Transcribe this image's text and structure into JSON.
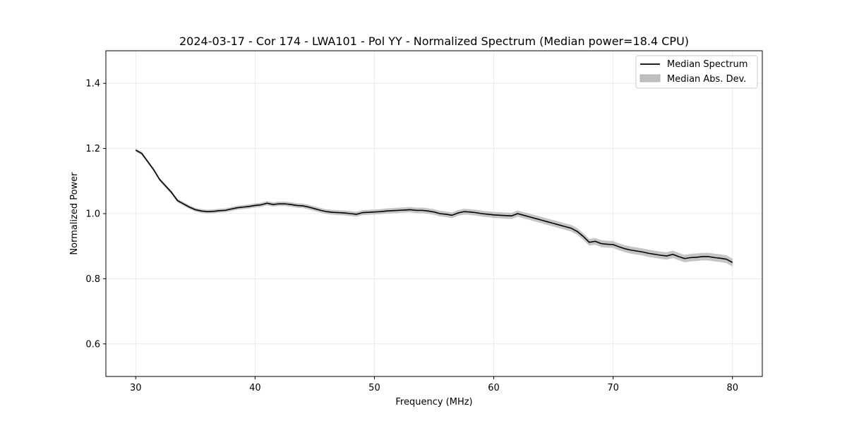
{
  "chart_data": {
    "type": "line",
    "title": "2024-03-17 - Cor 174 - LWA101 - Pol YY - Normalized Spectrum (Median power=18.4 CPU)",
    "xlabel": "Frequency (MHz)",
    "ylabel": "Normalized Power",
    "xlim": [
      27.5,
      82.5
    ],
    "ylim": [
      0.5,
      1.5
    ],
    "xticks": [
      30,
      40,
      50,
      60,
      70,
      80
    ],
    "xtick_labels": [
      "30",
      "40",
      "50",
      "60",
      "70",
      "80"
    ],
    "yticks": [
      0.6,
      0.8,
      1.0,
      1.2,
      1.4
    ],
    "ytick_labels": [
      "0.6",
      "0.8",
      "1.0",
      "1.2",
      "1.4"
    ],
    "grid": true,
    "legend_position": "top-right",
    "legend": [
      "Median Spectrum",
      "Median Abs. Dev."
    ],
    "series": [
      {
        "name": "Median Spectrum",
        "color": "#000000",
        "x": [
          30,
          30.5,
          31,
          31.5,
          32,
          32.5,
          33,
          33.5,
          34,
          34.5,
          35,
          35.5,
          36,
          36.5,
          37,
          37.5,
          38,
          38.5,
          39,
          39.5,
          40,
          40.5,
          41,
          41.5,
          42,
          42.5,
          43,
          43.5,
          44,
          44.5,
          45,
          45.5,
          46,
          46.5,
          47,
          47.5,
          48,
          48.5,
          49,
          49.5,
          50,
          50.5,
          51,
          51.5,
          52,
          52.5,
          53,
          53.5,
          54,
          54.5,
          55,
          55.5,
          56,
          56.5,
          57,
          57.5,
          58,
          58.5,
          59,
          59.5,
          60,
          60.5,
          61,
          61.5,
          62,
          62.5,
          63,
          63.5,
          64,
          64.5,
          65,
          65.5,
          66,
          66.5,
          67,
          67.5,
          68,
          68.5,
          69,
          69.5,
          70,
          70.5,
          71,
          71.5,
          72,
          72.5,
          73,
          73.5,
          74,
          74.5,
          75,
          75.5,
          76,
          76.5,
          77,
          77.5,
          78,
          78.5,
          79,
          79.5,
          80
        ],
        "values": [
          1.195,
          1.185,
          1.16,
          1.135,
          1.105,
          1.085,
          1.065,
          1.04,
          1.03,
          1.02,
          1.012,
          1.008,
          1.006,
          1.007,
          1.009,
          1.01,
          1.014,
          1.018,
          1.02,
          1.022,
          1.025,
          1.027,
          1.032,
          1.028,
          1.03,
          1.03,
          1.028,
          1.025,
          1.024,
          1.02,
          1.015,
          1.01,
          1.006,
          1.004,
          1.003,
          1.002,
          1.0,
          0.998,
          1.003,
          1.004,
          1.005,
          1.006,
          1.008,
          1.009,
          1.01,
          1.011,
          1.012,
          1.01,
          1.01,
          1.008,
          1.005,
          1.0,
          0.998,
          0.995,
          1.002,
          1.006,
          1.005,
          1.003,
          1.0,
          0.998,
          0.996,
          0.995,
          0.994,
          0.993,
          1.0,
          0.995,
          0.99,
          0.985,
          0.98,
          0.975,
          0.97,
          0.965,
          0.96,
          0.955,
          0.945,
          0.93,
          0.912,
          0.915,
          0.908,
          0.906,
          0.905,
          0.898,
          0.892,
          0.888,
          0.885,
          0.882,
          0.878,
          0.875,
          0.872,
          0.87,
          0.875,
          0.868,
          0.862,
          0.865,
          0.866,
          0.868,
          0.868,
          0.865,
          0.863,
          0.86,
          0.85
        ]
      }
    ],
    "band": {
      "name": "Median Abs. Dev.",
      "color": "#bfbfbf",
      "halfwidth_low_freq": 0.005,
      "halfwidth_high_freq": 0.012
    }
  }
}
